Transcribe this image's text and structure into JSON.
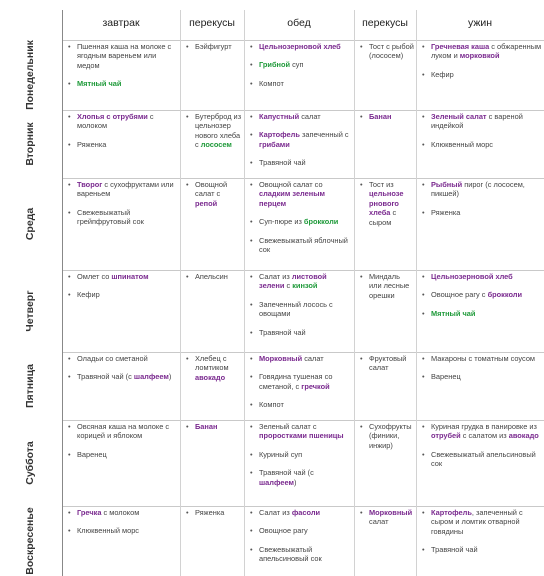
{
  "columns": [
    "завтрак",
    "перекусы",
    "обед",
    "перекусы",
    "ужин"
  ],
  "colors": {
    "purple": "#7a2a8f",
    "green": "#1f9a3a"
  },
  "rows": [
    {
      "day": "Понедельник",
      "cells": [
        [
          [
            [
              "Пшенная каша на молоке с ягодным вареньем или медом",
              ""
            ]
          ],
          [
            [
              "Мятный чай",
              "g"
            ]
          ]
        ],
        [
          [
            [
              "Бэйфигурт",
              ""
            ]
          ]
        ],
        [
          [
            [
              "Цельнозерновой хлеб",
              "v"
            ]
          ],
          [
            [
              "Грибной",
              "g"
            ],
            [
              " суп",
              ""
            ]
          ],
          [
            [
              "Компот",
              ""
            ]
          ]
        ],
        [
          [
            [
              "Тост с рыбой (лососем)",
              ""
            ]
          ]
        ],
        [
          [
            [
              "Гречневая каша",
              "v"
            ],
            [
              " с обжаренным луком и ",
              ""
            ],
            [
              "морковкой",
              "v"
            ]
          ],
          [
            [
              "Кефир",
              ""
            ]
          ]
        ]
      ]
    },
    {
      "day": "Вторник",
      "cells": [
        [
          [
            [
              "Хлопья с отрубями",
              "v"
            ],
            [
              " с молоком",
              ""
            ]
          ],
          [
            [
              "Ряженка",
              ""
            ]
          ]
        ],
        [
          [
            [
              "Бутерброд из цельнозер нового хлеба с ",
              ""
            ],
            [
              "лососем",
              "g"
            ]
          ]
        ],
        [
          [
            [
              "Капустный",
              "v"
            ],
            [
              " салат",
              ""
            ]
          ],
          [
            [
              "Картофель",
              "v"
            ],
            [
              " запеченный с ",
              ""
            ],
            [
              "грибами",
              "v"
            ]
          ],
          [
            [
              "Травяной чай",
              ""
            ]
          ]
        ],
        [
          [
            [
              "Банан",
              "v"
            ]
          ]
        ],
        [
          [
            [
              "Зеленый салат",
              "v"
            ],
            [
              " с вареной индейкой",
              ""
            ]
          ],
          [
            [
              "Клюквенный морс",
              ""
            ]
          ]
        ]
      ]
    },
    {
      "day": "Среда",
      "cells": [
        [
          [
            [
              "Творог",
              "v"
            ],
            [
              " с сухофруктами или вареньем",
              ""
            ]
          ],
          [
            [
              "Свежевыжатый грейпфрутовый сок",
              ""
            ]
          ]
        ],
        [
          [
            [
              "Овощной салат с ",
              ""
            ],
            [
              "репой",
              "v"
            ]
          ]
        ],
        [
          [
            [
              "Овощной салат со ",
              ""
            ],
            [
              "сладким зеленым перцем",
              "v"
            ]
          ],
          [
            [
              "Суп-пюре из ",
              ""
            ],
            [
              "брокколи",
              "g"
            ]
          ],
          [
            [
              "Свежевыжатый яблочный сок",
              ""
            ]
          ]
        ],
        [
          [
            [
              "Тост из ",
              ""
            ],
            [
              "цельнозе рнового хлеба",
              "v"
            ],
            [
              " с сыром",
              ""
            ]
          ]
        ],
        [
          [
            [
              "Рыбный",
              "v"
            ],
            [
              " пирог (с лососем, пикшей)",
              ""
            ]
          ],
          [
            [
              "Ряженка",
              ""
            ]
          ]
        ]
      ]
    },
    {
      "day": "Четверг",
      "cells": [
        [
          [
            [
              "Омлет со ",
              ""
            ],
            [
              "шпинатом",
              "v"
            ]
          ],
          [
            [
              "Кефир",
              ""
            ]
          ]
        ],
        [
          [
            [
              "Апельсин",
              ""
            ]
          ]
        ],
        [
          [
            [
              "Салат из ",
              ""
            ],
            [
              "листовой зелени",
              "v"
            ],
            [
              " с ",
              ""
            ],
            [
              "кинзой",
              "g"
            ]
          ],
          [
            [
              "Запеченный лосось",
              "",
              ""
            ],
            [
              " с овощами",
              ""
            ]
          ],
          [
            [
              "Травяной чай",
              ""
            ]
          ]
        ],
        [
          [
            [
              "Миндаль или лесные орешки",
              ""
            ]
          ]
        ],
        [
          [
            [
              "Цельнозерновой хлеб",
              "v"
            ]
          ],
          [
            [
              "Овощное рагу с ",
              ""
            ],
            [
              "брокколи",
              "v"
            ]
          ],
          [
            [
              "Мятный чай",
              "g"
            ]
          ]
        ]
      ]
    },
    {
      "day": "Пятница",
      "cells": [
        [
          [
            [
              "Оладьи со сметаной",
              ""
            ]
          ],
          [
            [
              "Травяной чай (с ",
              ""
            ],
            [
              "шалфеем",
              "v"
            ],
            [
              ")",
              ""
            ]
          ]
        ],
        [
          [
            [
              "Хлебец с ломтиком ",
              ""
            ],
            [
              "авокадо",
              "v"
            ]
          ]
        ],
        [
          [
            [
              "Морковный",
              "v"
            ],
            [
              " салат",
              ""
            ]
          ],
          [
            [
              "Говядина тушеная со сметаной, с ",
              ""
            ],
            [
              "гречкой",
              "v"
            ]
          ],
          [
            [
              "Компот",
              ""
            ]
          ]
        ],
        [
          [
            [
              "Фруктовый салат",
              ""
            ]
          ]
        ],
        [
          [
            [
              "Макароны с томатным соусом",
              ""
            ]
          ],
          [
            [
              "Варенец",
              ""
            ]
          ]
        ]
      ]
    },
    {
      "day": "Суббота",
      "cells": [
        [
          [
            [
              "Овсяная каша на молоке с корицей и яблоком",
              ""
            ]
          ],
          [
            [
              "Варенец",
              ""
            ]
          ]
        ],
        [
          [
            [
              "Банан",
              "v"
            ]
          ]
        ],
        [
          [
            [
              "Зеленый салат с ",
              ""
            ],
            [
              "проростками пшеницы",
              "v"
            ]
          ],
          [
            [
              "Куриный суп",
              ""
            ]
          ],
          [
            [
              "Травяной чай (с ",
              ""
            ],
            [
              "шалфеем",
              "v"
            ],
            [
              ")",
              ""
            ]
          ]
        ],
        [
          [
            [
              "Сухофрукты (финики, инжир)",
              ""
            ]
          ]
        ],
        [
          [
            [
              "Куриная грудка в панировке из ",
              ""
            ],
            [
              "отрубей",
              "v"
            ],
            [
              " с салатом из ",
              ""
            ],
            [
              "авокадо",
              "v"
            ]
          ],
          [
            [
              "Свежевыжатый апельсиновый сок",
              ""
            ]
          ]
        ]
      ]
    },
    {
      "day": "Воскресенье",
      "cells": [
        [
          [
            [
              "Гречка",
              "v"
            ],
            [
              " с молоком",
              ""
            ]
          ],
          [
            [
              "Клюквенный морс",
              ""
            ]
          ]
        ],
        [
          [
            [
              "Ряженка",
              ""
            ]
          ]
        ],
        [
          [
            [
              "Салат из ",
              ""
            ],
            [
              "фасоли",
              "v"
            ]
          ],
          [
            [
              "Овощное рагу",
              ""
            ]
          ],
          [
            [
              "Свежевыжатый апельсиновый сок",
              ""
            ]
          ]
        ],
        [
          [
            [
              "Морковный",
              "v"
            ],
            [
              " салат",
              ""
            ]
          ]
        ],
        [
          [
            [
              "Картофель",
              "v"
            ],
            [
              ", запеченный с сыром и ломтик отварной говядины",
              ""
            ]
          ],
          [
            [
              "Травяной чай",
              ""
            ]
          ]
        ]
      ]
    }
  ]
}
